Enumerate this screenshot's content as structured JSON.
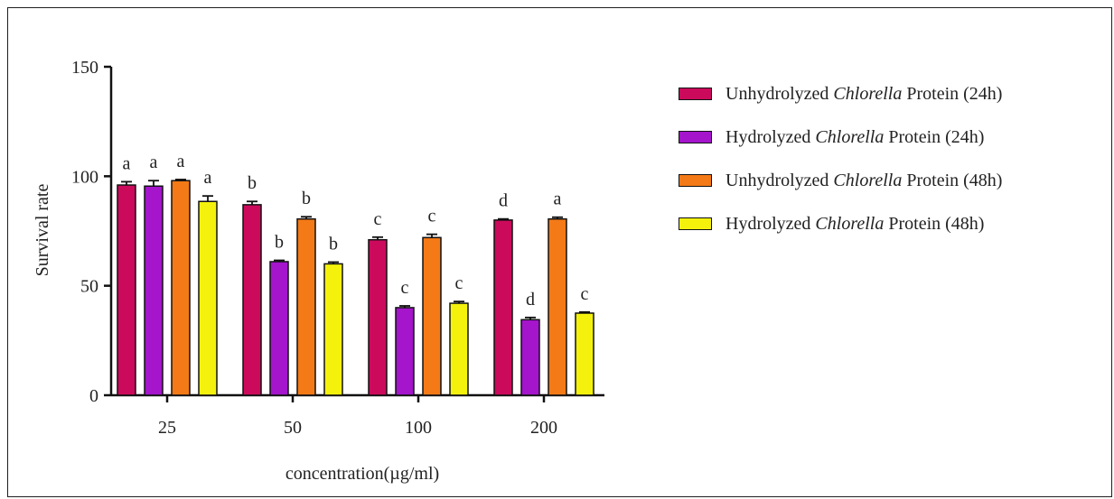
{
  "chart_data": {
    "type": "bar",
    "ylabel": "Survival rate",
    "xlabel": "concentration(µg/ml)",
    "ylim": [
      0,
      150
    ],
    "yticks": [
      "0",
      "50",
      "100",
      "150"
    ],
    "categories": [
      "25",
      "50",
      "100",
      "200"
    ],
    "legend_position": "right",
    "series": [
      {
        "name_before": "Unhydrolyzed ",
        "name_italic": "Chlorella",
        "name_after": " Protein (24h)",
        "color": "#cc0a5c",
        "values": [
          96,
          87,
          71,
          80
        ],
        "errors": [
          1.5,
          1.5,
          1.2,
          0.5
        ],
        "letters": [
          "a",
          "b",
          "c",
          "d"
        ]
      },
      {
        "name_before": "Hydrolyzed ",
        "name_italic": "Chlorella",
        "name_after": " Protein (24h)",
        "color": "#a415cc",
        "values": [
          95.5,
          61,
          40,
          34.5
        ],
        "errors": [
          2.5,
          0.6,
          0.8,
          1.0
        ],
        "letters": [
          "a",
          "b",
          "c",
          "d"
        ]
      },
      {
        "name_before": "Unhydrolyzed ",
        "name_italic": "Chlorella",
        "name_after": " Protein (48h)",
        "color": "#f47a17",
        "values": [
          98,
          80.5,
          72,
          80.5
        ],
        "errors": [
          0.5,
          1.0,
          1.5,
          0.8
        ],
        "letters": [
          "a",
          "b",
          "c",
          "a"
        ]
      },
      {
        "name_before": "Hydrolyzed ",
        "name_italic": "Chlorella",
        "name_after": " Protein (48h)",
        "color": "#f4f20d",
        "values": [
          88.5,
          60,
          42,
          37.5
        ],
        "errors": [
          2.5,
          0.8,
          0.8,
          0.5
        ],
        "letters": [
          "a",
          "b",
          "c",
          "c"
        ]
      }
    ]
  }
}
